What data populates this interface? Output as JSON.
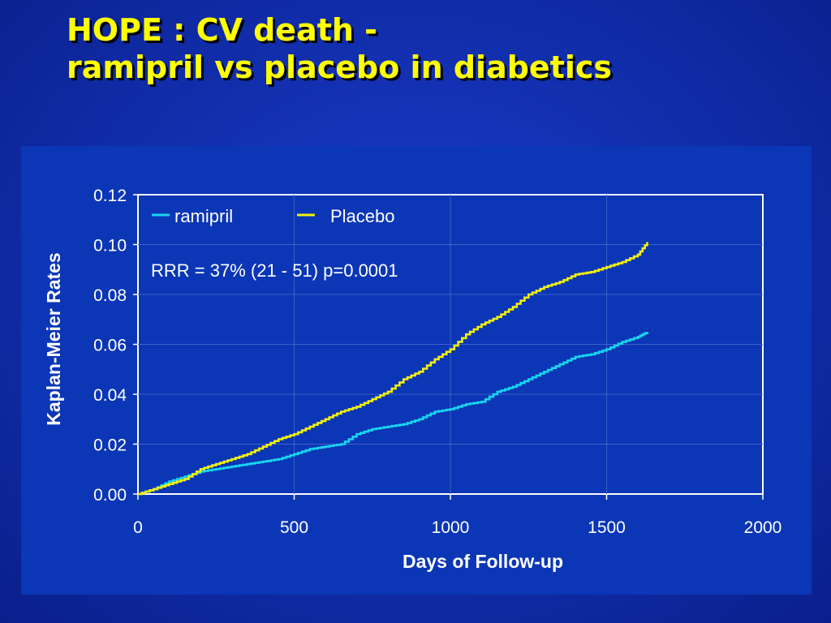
{
  "slide": {
    "title_line1": "HOPE : CV death -",
    "title_line2": "ramipril vs placebo in diabetics"
  },
  "colors": {
    "title": "#ffff00",
    "ramipril": "#17d7f0",
    "placebo": "#f2f20c",
    "axis_text": "#ffffff",
    "gridline": "#3e60c8"
  },
  "chart_data": {
    "type": "line",
    "title": "",
    "xlabel": "Days of Follow-up",
    "ylabel": "Kaplan-Meier Rates",
    "xlim": [
      0,
      2000
    ],
    "ylim": [
      0,
      0.12
    ],
    "x_ticks": [
      "0",
      "500",
      "1000",
      "1500",
      "2000"
    ],
    "y_ticks": [
      "0.00",
      "0.02",
      "0.04",
      "0.06",
      "0.08",
      "0.10",
      "0.12"
    ],
    "grid": true,
    "legend": {
      "position": "top-left",
      "entries": [
        "ramipril",
        "Placebo"
      ]
    },
    "annotation": "RRR = 37% (21 - 51) p=0.0001",
    "series": [
      {
        "name": "ramipril",
        "x": [
          0,
          50,
          100,
          150,
          200,
          250,
          300,
          350,
          400,
          450,
          500,
          550,
          600,
          650,
          700,
          750,
          800,
          850,
          900,
          950,
          1000,
          1050,
          1100,
          1150,
          1200,
          1250,
          1300,
          1350,
          1400,
          1450,
          1500,
          1550,
          1600,
          1630
        ],
        "y": [
          0,
          0.002,
          0.005,
          0.007,
          0.009,
          0.01,
          0.011,
          0.012,
          0.013,
          0.014,
          0.016,
          0.018,
          0.019,
          0.02,
          0.024,
          0.026,
          0.027,
          0.028,
          0.03,
          0.033,
          0.034,
          0.036,
          0.037,
          0.041,
          0.043,
          0.046,
          0.049,
          0.052,
          0.055,
          0.056,
          0.058,
          0.061,
          0.063,
          0.065
        ]
      },
      {
        "name": "Placebo",
        "x": [
          0,
          50,
          100,
          150,
          200,
          250,
          300,
          350,
          400,
          450,
          500,
          550,
          600,
          650,
          700,
          750,
          800,
          850,
          900,
          950,
          1000,
          1050,
          1100,
          1150,
          1200,
          1250,
          1300,
          1350,
          1400,
          1450,
          1500,
          1550,
          1600,
          1630
        ],
        "y": [
          0,
          0.002,
          0.004,
          0.006,
          0.01,
          0.012,
          0.014,
          0.016,
          0.019,
          0.022,
          0.024,
          0.027,
          0.03,
          0.033,
          0.035,
          0.038,
          0.041,
          0.046,
          0.049,
          0.054,
          0.058,
          0.064,
          0.068,
          0.071,
          0.075,
          0.08,
          0.083,
          0.085,
          0.088,
          0.089,
          0.091,
          0.093,
          0.096,
          0.101
        ]
      }
    ]
  }
}
